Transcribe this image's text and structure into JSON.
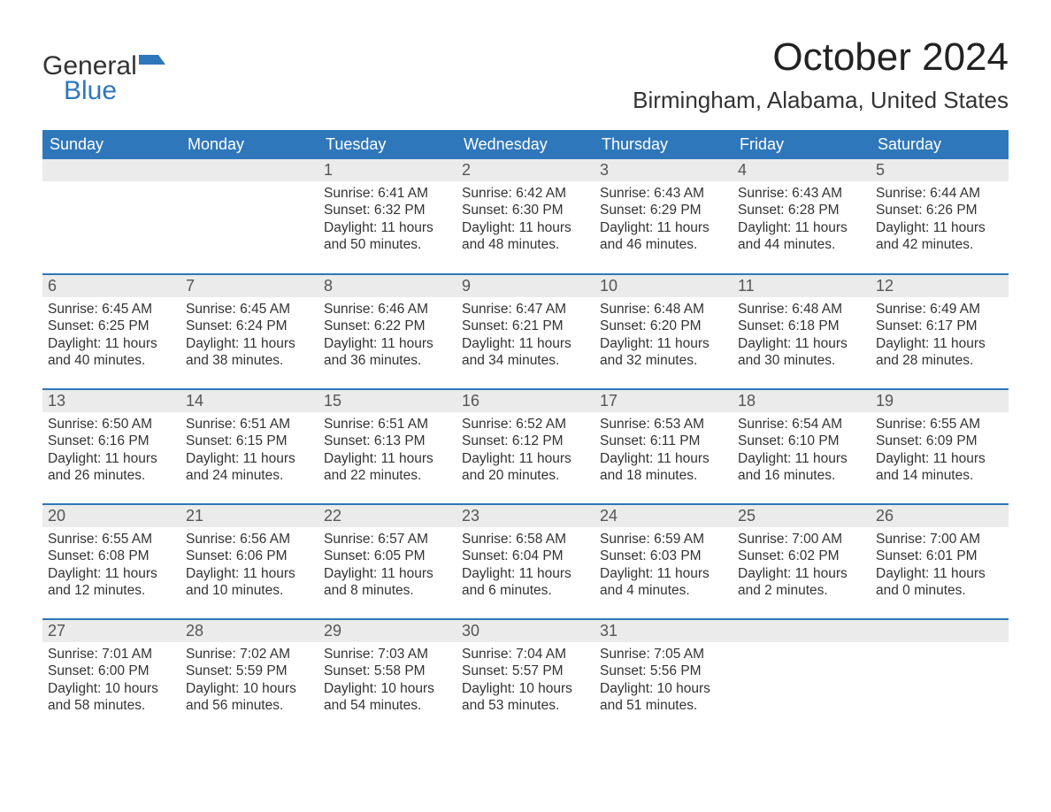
{
  "logo": {
    "text_general": "General",
    "text_blue": "Blue",
    "icon_color": "#2f77bb"
  },
  "header": {
    "month_title": "October 2024",
    "location": "Birmingham, Alabama, United States"
  },
  "calendar": {
    "day_headers": [
      "Sunday",
      "Monday",
      "Tuesday",
      "Wednesday",
      "Thursday",
      "Friday",
      "Saturday"
    ],
    "header_bg": "#2f77bb",
    "header_fg": "#ffffff",
    "row_top_border": "#2f77bb",
    "daynum_bg": "#ebebeb",
    "daynum_fg": "#555555",
    "body_fg": "#333333",
    "weeks": [
      [
        {
          "blank": true
        },
        {
          "blank": true
        },
        {
          "day": "1",
          "sunrise": "Sunrise: 6:41 AM",
          "sunset": "Sunset: 6:32 PM",
          "daylight": "Daylight: 11 hours and 50 minutes."
        },
        {
          "day": "2",
          "sunrise": "Sunrise: 6:42 AM",
          "sunset": "Sunset: 6:30 PM",
          "daylight": "Daylight: 11 hours and 48 minutes."
        },
        {
          "day": "3",
          "sunrise": "Sunrise: 6:43 AM",
          "sunset": "Sunset: 6:29 PM",
          "daylight": "Daylight: 11 hours and 46 minutes."
        },
        {
          "day": "4",
          "sunrise": "Sunrise: 6:43 AM",
          "sunset": "Sunset: 6:28 PM",
          "daylight": "Daylight: 11 hours and 44 minutes."
        },
        {
          "day": "5",
          "sunrise": "Sunrise: 6:44 AM",
          "sunset": "Sunset: 6:26 PM",
          "daylight": "Daylight: 11 hours and 42 minutes."
        }
      ],
      [
        {
          "day": "6",
          "sunrise": "Sunrise: 6:45 AM",
          "sunset": "Sunset: 6:25 PM",
          "daylight": "Daylight: 11 hours and 40 minutes."
        },
        {
          "day": "7",
          "sunrise": "Sunrise: 6:45 AM",
          "sunset": "Sunset: 6:24 PM",
          "daylight": "Daylight: 11 hours and 38 minutes."
        },
        {
          "day": "8",
          "sunrise": "Sunrise: 6:46 AM",
          "sunset": "Sunset: 6:22 PM",
          "daylight": "Daylight: 11 hours and 36 minutes."
        },
        {
          "day": "9",
          "sunrise": "Sunrise: 6:47 AM",
          "sunset": "Sunset: 6:21 PM",
          "daylight": "Daylight: 11 hours and 34 minutes."
        },
        {
          "day": "10",
          "sunrise": "Sunrise: 6:48 AM",
          "sunset": "Sunset: 6:20 PM",
          "daylight": "Daylight: 11 hours and 32 minutes."
        },
        {
          "day": "11",
          "sunrise": "Sunrise: 6:48 AM",
          "sunset": "Sunset: 6:18 PM",
          "daylight": "Daylight: 11 hours and 30 minutes."
        },
        {
          "day": "12",
          "sunrise": "Sunrise: 6:49 AM",
          "sunset": "Sunset: 6:17 PM",
          "daylight": "Daylight: 11 hours and 28 minutes."
        }
      ],
      [
        {
          "day": "13",
          "sunrise": "Sunrise: 6:50 AM",
          "sunset": "Sunset: 6:16 PM",
          "daylight": "Daylight: 11 hours and 26 minutes."
        },
        {
          "day": "14",
          "sunrise": "Sunrise: 6:51 AM",
          "sunset": "Sunset: 6:15 PM",
          "daylight": "Daylight: 11 hours and 24 minutes."
        },
        {
          "day": "15",
          "sunrise": "Sunrise: 6:51 AM",
          "sunset": "Sunset: 6:13 PM",
          "daylight": "Daylight: 11 hours and 22 minutes."
        },
        {
          "day": "16",
          "sunrise": "Sunrise: 6:52 AM",
          "sunset": "Sunset: 6:12 PM",
          "daylight": "Daylight: 11 hours and 20 minutes."
        },
        {
          "day": "17",
          "sunrise": "Sunrise: 6:53 AM",
          "sunset": "Sunset: 6:11 PM",
          "daylight": "Daylight: 11 hours and 18 minutes."
        },
        {
          "day": "18",
          "sunrise": "Sunrise: 6:54 AM",
          "sunset": "Sunset: 6:10 PM",
          "daylight": "Daylight: 11 hours and 16 minutes."
        },
        {
          "day": "19",
          "sunrise": "Sunrise: 6:55 AM",
          "sunset": "Sunset: 6:09 PM",
          "daylight": "Daylight: 11 hours and 14 minutes."
        }
      ],
      [
        {
          "day": "20",
          "sunrise": "Sunrise: 6:55 AM",
          "sunset": "Sunset: 6:08 PM",
          "daylight": "Daylight: 11 hours and 12 minutes."
        },
        {
          "day": "21",
          "sunrise": "Sunrise: 6:56 AM",
          "sunset": "Sunset: 6:06 PM",
          "daylight": "Daylight: 11 hours and 10 minutes."
        },
        {
          "day": "22",
          "sunrise": "Sunrise: 6:57 AM",
          "sunset": "Sunset: 6:05 PM",
          "daylight": "Daylight: 11 hours and 8 minutes."
        },
        {
          "day": "23",
          "sunrise": "Sunrise: 6:58 AM",
          "sunset": "Sunset: 6:04 PM",
          "daylight": "Daylight: 11 hours and 6 minutes."
        },
        {
          "day": "24",
          "sunrise": "Sunrise: 6:59 AM",
          "sunset": "Sunset: 6:03 PM",
          "daylight": "Daylight: 11 hours and 4 minutes."
        },
        {
          "day": "25",
          "sunrise": "Sunrise: 7:00 AM",
          "sunset": "Sunset: 6:02 PM",
          "daylight": "Daylight: 11 hours and 2 minutes."
        },
        {
          "day": "26",
          "sunrise": "Sunrise: 7:00 AM",
          "sunset": "Sunset: 6:01 PM",
          "daylight": "Daylight: 11 hours and 0 minutes."
        }
      ],
      [
        {
          "day": "27",
          "sunrise": "Sunrise: 7:01 AM",
          "sunset": "Sunset: 6:00 PM",
          "daylight": "Daylight: 10 hours and 58 minutes."
        },
        {
          "day": "28",
          "sunrise": "Sunrise: 7:02 AM",
          "sunset": "Sunset: 5:59 PM",
          "daylight": "Daylight: 10 hours and 56 minutes."
        },
        {
          "day": "29",
          "sunrise": "Sunrise: 7:03 AM",
          "sunset": "Sunset: 5:58 PM",
          "daylight": "Daylight: 10 hours and 54 minutes."
        },
        {
          "day": "30",
          "sunrise": "Sunrise: 7:04 AM",
          "sunset": "Sunset: 5:57 PM",
          "daylight": "Daylight: 10 hours and 53 minutes."
        },
        {
          "day": "31",
          "sunrise": "Sunrise: 7:05 AM",
          "sunset": "Sunset: 5:56 PM",
          "daylight": "Daylight: 10 hours and 51 minutes."
        },
        {
          "blank": true
        },
        {
          "blank": true
        }
      ]
    ]
  }
}
